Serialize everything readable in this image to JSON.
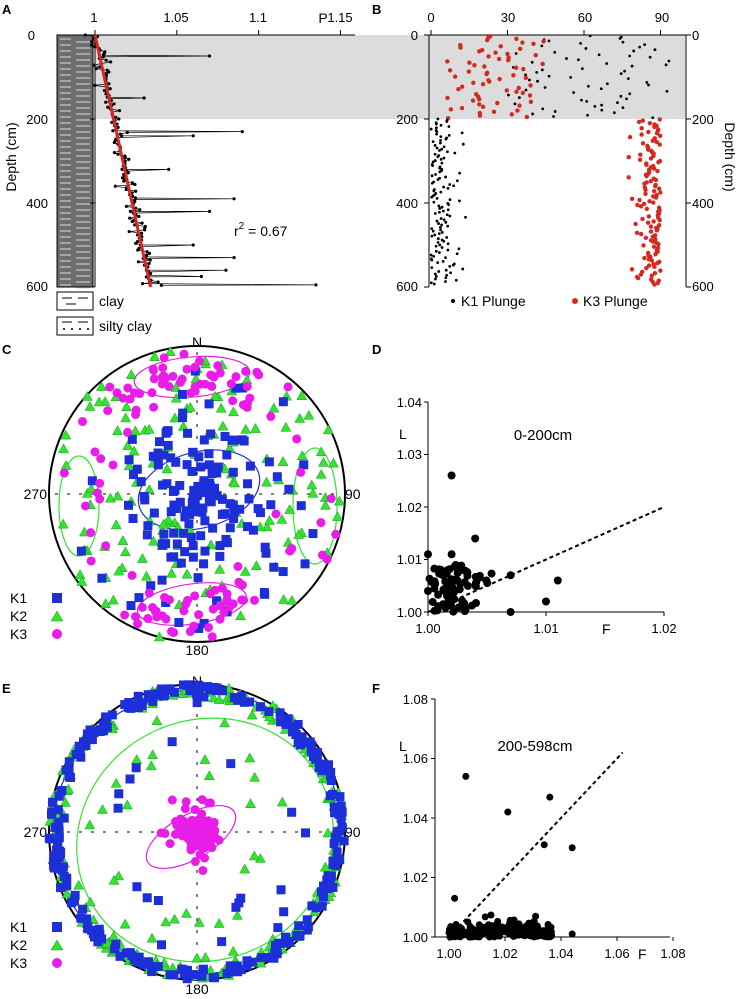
{
  "panel_labels": [
    "A",
    "B",
    "C",
    "D",
    "E",
    "F"
  ],
  "colors": {
    "k1": "#1d2fd6",
    "k2": "#33e233",
    "k3": "#e81ee8",
    "red": "#d6281e",
    "shade": "#dcdcdc",
    "black": "#000000"
  },
  "chart_data": [
    {
      "id": "A",
      "type": "scatter",
      "title": "",
      "xlabel": "P",
      "ylabel": "Depth (cm)",
      "x_ticks": [
        "1",
        "1.05",
        "1.1",
        "1.15"
      ],
      "y_ticks": [
        "0",
        "200",
        "400",
        "600"
      ],
      "xlim": [
        1.0,
        1.165
      ],
      "ylim": [
        600,
        0
      ],
      "shaded_depth_range": [
        0,
        200
      ],
      "annotation": {
        "text": "r",
        "sup": "2",
        "rest": " = 0.67"
      },
      "regression": {
        "x": [
          1.0,
          1.034
        ],
        "y": [
          0,
          600
        ]
      },
      "lithology_legend": [
        "clay",
        "silty clay"
      ],
      "outliers": [
        [
          1.07,
          50
        ],
        [
          1.03,
          150
        ],
        [
          1.09,
          230
        ],
        [
          1.06,
          240
        ],
        [
          1.045,
          320
        ],
        [
          1.085,
          390
        ],
        [
          1.07,
          420
        ],
        [
          1.06,
          500
        ],
        [
          1.085,
          530
        ],
        [
          1.08,
          560
        ],
        [
          1.065,
          575
        ],
        [
          1.135,
          595
        ]
      ]
    },
    {
      "id": "B",
      "type": "scatter",
      "title": "",
      "xlabel": "",
      "ylabel": "Depth (cm)",
      "x_ticks": [
        "0",
        "30",
        "60",
        "90"
      ],
      "y_ticks": [
        "0",
        "200",
        "400",
        "600"
      ],
      "xlim": [
        0,
        100
      ],
      "ylim": [
        600,
        0
      ],
      "shaded_depth_range": [
        0,
        200
      ],
      "series": [
        {
          "name": "K1  Plunge",
          "color": "#000000"
        },
        {
          "name": "K3  Plunge",
          "color": "#d6281e"
        }
      ]
    },
    {
      "id": "C",
      "type": "scatter",
      "projection": "stereonet",
      "title": "",
      "directions": {
        "n": "N",
        "e": "90",
        "s": "180",
        "w": "270"
      },
      "series": [
        {
          "name": "K1",
          "marker": "square"
        },
        {
          "name": "K2",
          "marker": "triangle"
        },
        {
          "name": "K3",
          "marker": "circle"
        }
      ],
      "k1_mean": {
        "trend": 0,
        "plunge": 90
      },
      "k3_mean": {
        "trend": 180,
        "plunge": 10
      }
    },
    {
      "id": "D",
      "type": "scatter",
      "title": "0-200cm",
      "xlabel": "F",
      "ylabel": "L",
      "x_ticks": [
        "1.00",
        "1.01",
        "1.02"
      ],
      "y_ticks": [
        "1.00",
        "1.01",
        "1.02",
        "1.03",
        "1.04"
      ],
      "xlim": [
        1.0,
        1.02
      ],
      "ylim": [
        1.0,
        1.04
      ],
      "reference_line": {
        "x": [
          1.0,
          1.02
        ],
        "y": [
          1.0,
          1.02
        ]
      },
      "points": [
        [
          1.002,
          1.026
        ],
        [
          1.004,
          1.014
        ],
        [
          1.0,
          1.011
        ],
        [
          1.002,
          1.011
        ],
        [
          1.011,
          1.006
        ],
        [
          1.007,
          1.007
        ],
        [
          1.0,
          1.004
        ],
        [
          1.01,
          1.002
        ],
        [
          1.007,
          1.0
        ]
      ]
    },
    {
      "id": "E",
      "type": "scatter",
      "projection": "stereonet",
      "title": "",
      "directions": {
        "n": "N",
        "e": "90",
        "s": "180",
        "w": "270"
      },
      "series": [
        {
          "name": "K1",
          "marker": "square"
        },
        {
          "name": "K2",
          "marker": "triangle"
        },
        {
          "name": "K3",
          "marker": "circle"
        }
      ],
      "k1_mean": {
        "trend": 0,
        "plunge": 0
      },
      "k3_mean": {
        "trend": 0,
        "plunge": 90
      }
    },
    {
      "id": "F",
      "type": "scatter",
      "title": "200-598cm",
      "xlabel": "F",
      "ylabel": "L",
      "x_ticks": [
        "1.00",
        "1.02",
        "1.04",
        "1.06",
        "1.08"
      ],
      "y_ticks": [
        "1.00",
        "1.02",
        "1.04",
        "1.06",
        "1.08"
      ],
      "xlim": [
        1.0,
        1.08
      ],
      "ylim": [
        1.0,
        1.08
      ],
      "reference_line": {
        "x": [
          1.0,
          1.062
        ],
        "y": [
          1.0,
          1.062
        ]
      },
      "points": [
        [
          1.006,
          1.054
        ],
        [
          1.036,
          1.047
        ],
        [
          1.021,
          1.042
        ],
        [
          1.034,
          1.031
        ],
        [
          1.044,
          1.03
        ],
        [
          1.002,
          1.013
        ],
        [
          1.044,
          1.001
        ]
      ]
    }
  ]
}
